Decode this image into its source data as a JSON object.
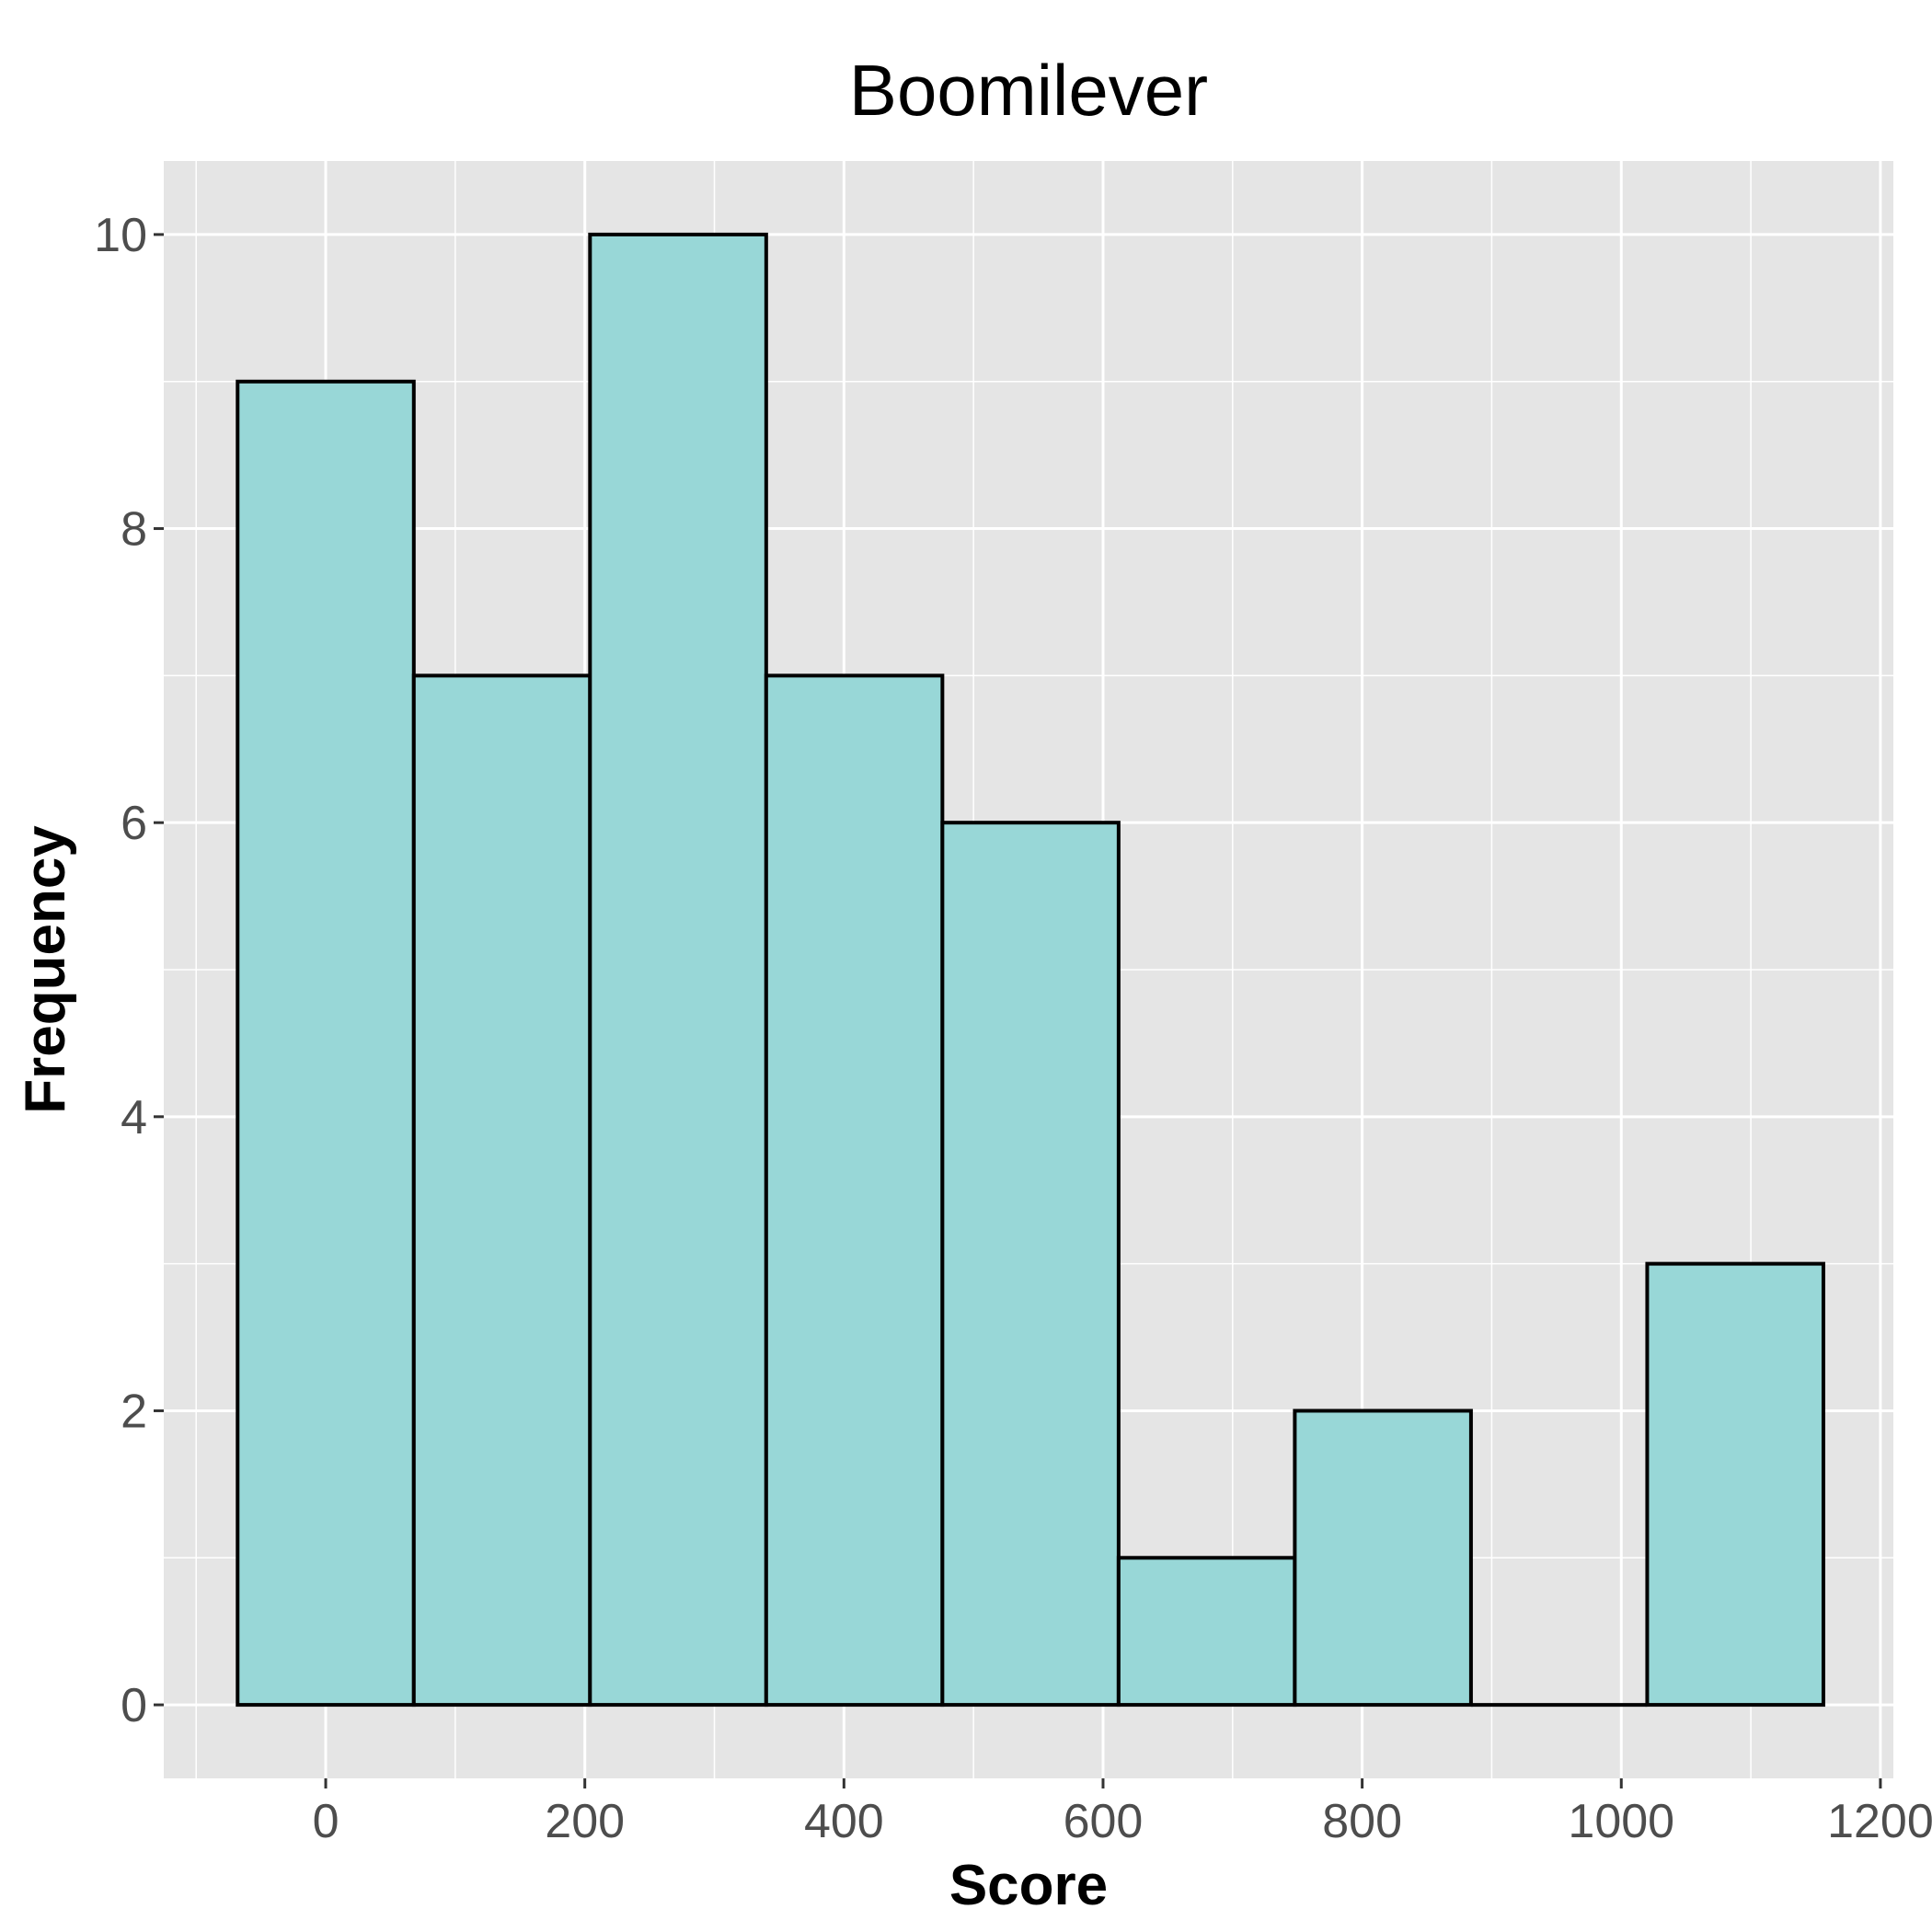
{
  "chart_data": {
    "type": "bar",
    "title": "Boomilever",
    "xlabel": "Score",
    "ylabel": "Frequency",
    "bins": [
      {
        "start": -68,
        "end": 68,
        "count": 9
      },
      {
        "start": 68,
        "end": 204,
        "count": 7
      },
      {
        "start": 204,
        "end": 340,
        "count": 10
      },
      {
        "start": 340,
        "end": 476,
        "count": 7
      },
      {
        "start": 476,
        "end": 612,
        "count": 6
      },
      {
        "start": 612,
        "end": 748,
        "count": 1
      },
      {
        "start": 748,
        "end": 884,
        "count": 2
      },
      {
        "start": 884,
        "end": 1020,
        "count": 0
      },
      {
        "start": 1020,
        "end": 1156,
        "count": 3
      }
    ],
    "xlim": [
      -125,
      1210
    ],
    "ylim": [
      -0.5,
      10.5
    ],
    "x_ticks": [
      0,
      200,
      400,
      600,
      800,
      1000,
      1200
    ],
    "x_tick_labels": [
      "0",
      "200",
      "400",
      "600",
      "800",
      "1000",
      "1200"
    ],
    "y_ticks": [
      0,
      2,
      4,
      6,
      8,
      10
    ],
    "y_tick_labels": [
      "0",
      "2",
      "4",
      "6",
      "8",
      "10"
    ],
    "grid": true,
    "colors": {
      "bar_fill": "#98d7d7",
      "bar_outline": "#000000",
      "panel_background": "#e5e5e5",
      "grid": "#ffffff"
    }
  }
}
